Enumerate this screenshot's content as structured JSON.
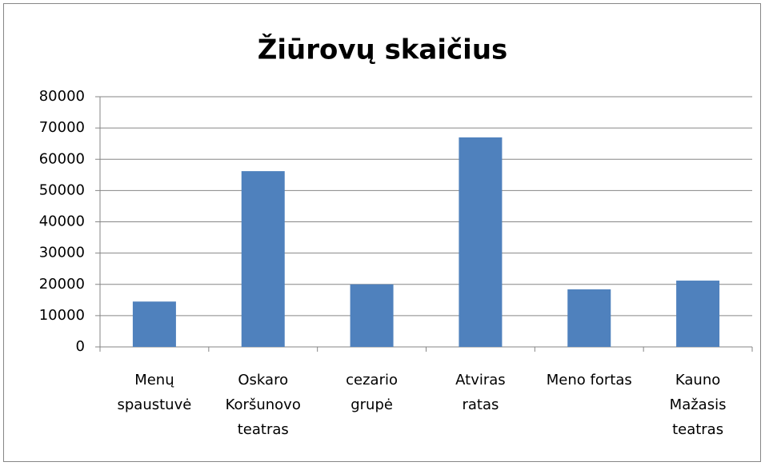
{
  "chart_data": {
    "type": "bar",
    "title": "Žiūrovų skaičius",
    "categories": [
      [
        "Menų",
        "spaustuvė"
      ],
      [
        "Oskaro",
        "Koršunovo",
        "teatras"
      ],
      [
        "cezario",
        "grupė"
      ],
      [
        "Atviras",
        "ratas"
      ],
      [
        "Meno fortas"
      ],
      [
        "Kauno",
        "Mažasis",
        "teatras"
      ]
    ],
    "values": [
      14500,
      56200,
      20000,
      67000,
      18400,
      21200
    ],
    "color": "#4f81bd",
    "ylim": [
      0,
      80000
    ],
    "yticks": [
      0,
      10000,
      20000,
      30000,
      40000,
      50000,
      60000,
      70000,
      80000
    ],
    "grid": true
  }
}
